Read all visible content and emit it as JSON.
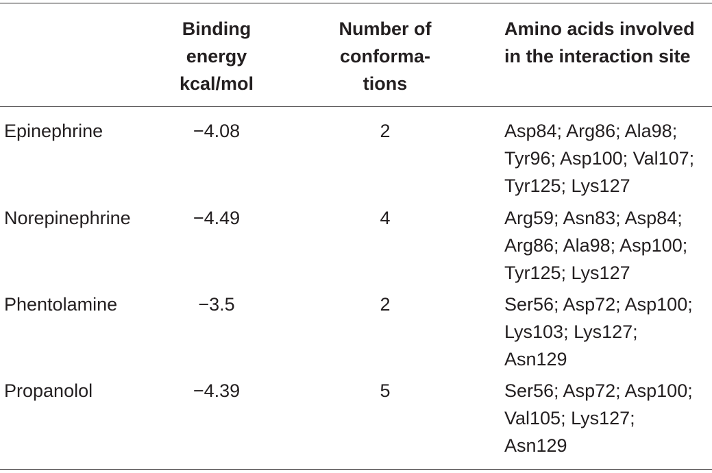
{
  "table": {
    "headers": {
      "compound": "",
      "binding_energy": [
        "Binding",
        "energy",
        "kcal/mol"
      ],
      "conformations": [
        "Number of",
        "conforma-",
        "tions"
      ],
      "amino_acids": [
        "Amino acids involved",
        "in the interaction site"
      ]
    },
    "rows": [
      {
        "compound": "Epinephrine",
        "binding_energy": "−4.08",
        "conformations": "2",
        "amino_acids": [
          "Asp84; Arg86; Ala98;",
          "Tyr96; Asp100; Val107;",
          "Tyr125; Lys127"
        ]
      },
      {
        "compound": "Norepinephrine",
        "binding_energy": "−4.49",
        "conformations": "4",
        "amino_acids": [
          "Arg59; Asn83; Asp84;",
          "Arg86; Ala98; Asp100;",
          "Tyr125; Lys127"
        ]
      },
      {
        "compound": "Phentolamine",
        "binding_energy": "−3.5",
        "conformations": "2",
        "amino_acids": [
          "Ser56; Asp72; Asp100;",
          "Lys103; Lys127;",
          "Asn129"
        ]
      },
      {
        "compound": "Propanolol",
        "binding_energy": "−4.39",
        "conformations": "5",
        "amino_acids": [
          "Ser56; Asp72; Asp100;",
          "Val105; Lys127;",
          "Asn129"
        ]
      }
    ]
  }
}
